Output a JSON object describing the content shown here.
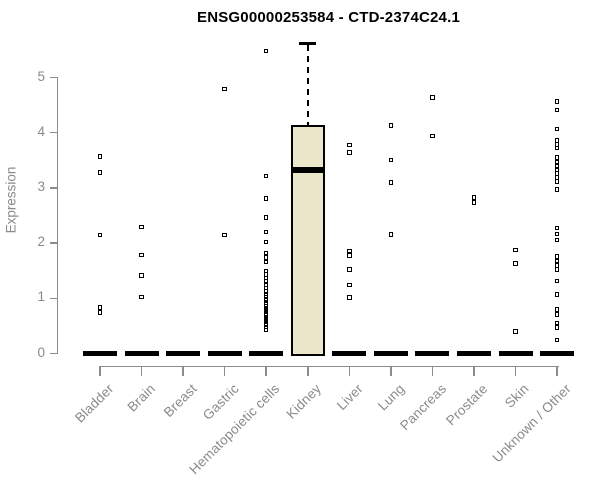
{
  "colors": {
    "background": "#ffffff",
    "axis": "#8c8c8c",
    "axis_text": "#8a8a8a",
    "title_text": "#000000",
    "box_fill": "#ece7cb",
    "box_border": "#000000",
    "point": "#000000"
  },
  "chart_data": {
    "type": "boxplot",
    "title": "ENSG00000253584 - CTD-2374C24.1",
    "xlabel": "",
    "ylabel": "Expression",
    "ylim": [
      0,
      5.7
    ],
    "y_ticks": [
      0,
      1,
      2,
      3,
      4,
      5
    ],
    "grid": "off",
    "categories": [
      "Bladder",
      "Brain",
      "Breast",
      "Gastric",
      "Hematopoietic cells",
      "Kidney",
      "Liver",
      "Lung",
      "Pancreas",
      "Prostate",
      "Skin",
      "Unknown / Other"
    ],
    "boxes": [
      {
        "category": "Bladder",
        "q1": 0,
        "median": 0,
        "q3": 0,
        "whisker_low": 0,
        "whisker_high": 0
      },
      {
        "category": "Brain",
        "q1": 0,
        "median": 0,
        "q3": 0,
        "whisker_low": 0,
        "whisker_high": 0
      },
      {
        "category": "Breast",
        "q1": 0,
        "median": 0,
        "q3": 0,
        "whisker_low": 0,
        "whisker_high": 0
      },
      {
        "category": "Gastric",
        "q1": 0,
        "median": 0,
        "q3": 0,
        "whisker_low": 0,
        "whisker_high": 0
      },
      {
        "category": "Hematopoietic cells",
        "q1": 0,
        "median": 0,
        "q3": 0,
        "whisker_low": 0,
        "whisker_high": 0
      },
      {
        "category": "Kidney",
        "q1": 0,
        "median": 3.33,
        "q3": 4.14,
        "whisker_low": 0,
        "whisker_high": 5.62
      },
      {
        "category": "Liver",
        "q1": 0,
        "median": 0,
        "q3": 0,
        "whisker_low": 0,
        "whisker_high": 0
      },
      {
        "category": "Lung",
        "q1": 0,
        "median": 0,
        "q3": 0,
        "whisker_low": 0,
        "whisker_high": 0
      },
      {
        "category": "Pancreas",
        "q1": 0,
        "median": 0,
        "q3": 0,
        "whisker_low": 0,
        "whisker_high": 0
      },
      {
        "category": "Prostate",
        "q1": 0,
        "median": 0,
        "q3": 0,
        "whisker_low": 0,
        "whisker_high": 0
      },
      {
        "category": "Skin",
        "q1": 0,
        "median": 0,
        "q3": 0,
        "whisker_low": 0,
        "whisker_high": 0
      },
      {
        "category": "Unknown / Other",
        "q1": 0,
        "median": 0,
        "q3": 0,
        "whisker_low": 0,
        "whisker_high": 0
      }
    ],
    "points": [
      [
        3.57,
        3.28,
        2.15,
        0.84,
        0.75
      ],
      [
        2.29,
        1.79,
        1.42,
        1.03
      ],
      [],
      [
        4.79,
        2.15
      ],
      [
        5.48,
        3.22,
        2.81,
        2.47,
        2.2,
        2.02,
        1.82,
        1.74,
        1.66,
        1.5,
        1.43,
        1.37,
        1.31,
        1.25,
        1.19,
        1.13,
        1.08,
        1.03,
        0.98,
        0.93,
        0.89,
        0.85,
        0.81,
        0.77,
        0.73,
        0.69,
        0.65,
        0.61,
        0.57,
        0.53,
        0.48,
        0.43
      ],
      [],
      [
        3.78,
        3.64,
        1.86,
        1.78,
        1.52,
        1.24,
        1.02
      ],
      [
        4.13,
        3.51,
        3.1,
        2.16
      ],
      [
        4.64,
        3.94
      ],
      [
        2.83,
        2.74
      ],
      [
        1.88,
        1.63,
        0.4
      ],
      [
        4.57,
        4.41,
        4.07,
        3.86,
        3.79,
        3.72,
        3.55,
        3.47,
        3.4,
        3.33,
        3.26,
        3.19,
        3.12,
        2.97,
        2.28,
        2.17,
        2.06,
        1.76,
        1.68,
        1.6,
        1.52,
        1.32,
        1.07,
        0.8,
        0.71,
        0.56,
        0.47,
        0.25
      ]
    ]
  }
}
